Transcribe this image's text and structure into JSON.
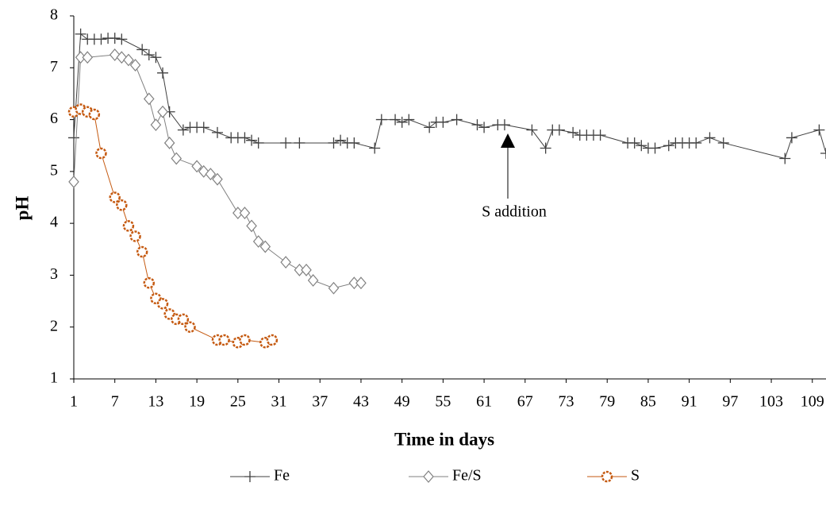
{
  "chart_data": {
    "type": "line",
    "x_label": "Time in days",
    "y_label": "pH",
    "annotation": "S addition",
    "xlim": [
      1,
      111
    ],
    "xticks": [
      1,
      7,
      13,
      19,
      25,
      31,
      37,
      43,
      49,
      55,
      61,
      67,
      73,
      79,
      85,
      91,
      97,
      103,
      109
    ],
    "ylim": [
      1,
      8
    ],
    "yticks": [
      1,
      2,
      3,
      4,
      5,
      6,
      7,
      8
    ],
    "series": [
      {
        "name": "Fe",
        "color": "#404040",
        "marker": "plus",
        "x": [
          1,
          2,
          3,
          4,
          5,
          6,
          7,
          8,
          11,
          12,
          13,
          14,
          15,
          17,
          18,
          19,
          20,
          22,
          24,
          25,
          26,
          27,
          28,
          32,
          34,
          39,
          40,
          41,
          42,
          45,
          46,
          48,
          49,
          50,
          53,
          54,
          55,
          57,
          60,
          61,
          63,
          64,
          68,
          70,
          71,
          72,
          74,
          75,
          76,
          77,
          78,
          82,
          83,
          84,
          85,
          86,
          88,
          89,
          90,
          91,
          92,
          94,
          96,
          105,
          106,
          110,
          111
        ],
        "values": [
          5.65,
          7.65,
          7.55,
          7.55,
          7.55,
          7.57,
          7.57,
          7.55,
          7.35,
          7.25,
          7.2,
          6.9,
          6.15,
          5.8,
          5.85,
          5.85,
          5.85,
          5.75,
          5.65,
          5.65,
          5.65,
          5.6,
          5.55,
          5.55,
          5.55,
          5.55,
          5.6,
          5.55,
          5.55,
          5.45,
          6.0,
          6.0,
          5.95,
          6.0,
          5.85,
          5.95,
          5.95,
          6.0,
          5.9,
          5.85,
          5.9,
          5.9,
          5.8,
          5.45,
          5.8,
          5.8,
          5.75,
          5.7,
          5.7,
          5.7,
          5.7,
          5.55,
          5.55,
          5.5,
          5.45,
          5.45,
          5.5,
          5.55,
          5.55,
          5.55,
          5.55,
          5.65,
          5.55,
          5.25,
          5.65,
          5.8,
          5.35
        ]
      },
      {
        "name": "Fe/S",
        "color": "#808080",
        "marker": "diamond",
        "x": [
          1,
          2,
          3,
          7,
          8,
          9,
          10,
          12,
          13,
          14,
          15,
          16,
          19,
          20,
          21,
          22,
          25,
          26,
          27,
          28,
          29,
          32,
          34,
          35,
          36,
          39,
          42,
          43
        ],
        "values": [
          4.8,
          7.2,
          7.2,
          7.25,
          7.2,
          7.15,
          7.05,
          6.4,
          5.9,
          6.15,
          5.55,
          5.25,
          5.1,
          5.0,
          4.95,
          4.85,
          4.2,
          4.2,
          3.95,
          3.65,
          3.55,
          3.25,
          3.1,
          3.1,
          2.9,
          2.75,
          2.85,
          2.85
        ]
      },
      {
        "name": "S",
        "color": "#c55a11",
        "marker": "circle",
        "x": [
          1,
          2,
          3,
          4,
          5,
          7,
          8,
          9,
          10,
          11,
          12,
          13,
          14,
          15,
          16,
          17,
          18,
          22,
          23,
          25,
          26,
          29,
          30
        ],
        "values": [
          6.15,
          6.2,
          6.15,
          6.1,
          5.35,
          4.5,
          4.35,
          3.95,
          3.75,
          3.45,
          2.85,
          2.55,
          2.45,
          2.25,
          2.15,
          2.15,
          2.0,
          1.75,
          1.75,
          1.7,
          1.75,
          1.7,
          1.75
        ]
      }
    ]
  }
}
